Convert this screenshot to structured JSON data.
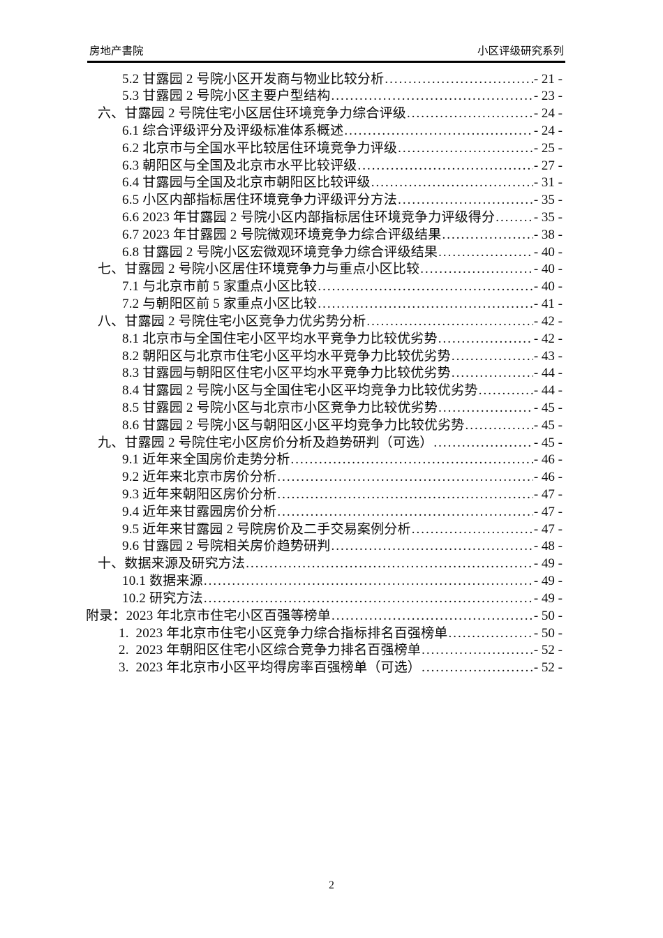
{
  "header": {
    "left": "房地产書院",
    "right": "小区评级研究系列"
  },
  "footer": {
    "page_number": "2"
  },
  "toc": {
    "entries": [
      {
        "level": "sub",
        "title": "5.2 甘露园 2 号院小区开发商与物业比较分析",
        "page": "- 21 -"
      },
      {
        "level": "sub",
        "title": "5.3 甘露园 2 号院小区主要户型结构",
        "page": "- 23 -"
      },
      {
        "level": "top",
        "title": "六、甘露园 2 号院住宅小区居住环境竞争力综合评级",
        "page": "- 24 -"
      },
      {
        "level": "sub",
        "title": "6.1 综合评级评分及评级标准体系概述",
        "page": "- 24 -"
      },
      {
        "level": "sub",
        "title": "6.2 北京市与全国水平比较居住环境竞争力评级",
        "page": "- 25 -"
      },
      {
        "level": "sub",
        "title": "6.3 朝阳区与全国及北京市水平比较评级",
        "page": "- 27 -"
      },
      {
        "level": "sub",
        "title": "6.4 甘露园与全国及北京市朝阳区比较评级",
        "page": "- 31 -"
      },
      {
        "level": "sub",
        "title": "6.5 小区内部指标居住环境竞争力评级评分方法",
        "page": "- 35 -"
      },
      {
        "level": "sub",
        "title": "6.6 2023 年甘露园 2 号院小区内部指标居住环境竞争力评级得分",
        "page": "- 35 -"
      },
      {
        "level": "sub",
        "title": "6.7 2023 年甘露园 2 号院微观环境竞争力综合评级结果",
        "page": "- 38 -"
      },
      {
        "level": "sub",
        "title": "6.8 甘露园 2 号院小区宏微观环境竞争力综合评级结果",
        "page": "- 40 -"
      },
      {
        "level": "top",
        "title": "七、甘露园 2 号院小区居住环境竞争力与重点小区比较",
        "page": "- 40 -"
      },
      {
        "level": "sub",
        "title": "7.1 与北京市前 5 家重点小区比较",
        "page": "- 40 -"
      },
      {
        "level": "sub",
        "title": "7.2 与朝阳区前 5 家重点小区比较",
        "page": "- 41 -"
      },
      {
        "level": "top",
        "title": "八、甘露园 2 号院住宅小区竞争力优劣势分析",
        "page": "- 42 -"
      },
      {
        "level": "sub",
        "title": "8.1 北京市与全国住宅小区平均水平竞争力比较优劣势",
        "page": "- 42 -"
      },
      {
        "level": "sub",
        "title": "8.2 朝阳区与北京市住宅小区平均水平竞争力比较优劣势",
        "page": "- 43 -"
      },
      {
        "level": "sub",
        "title": "8.3 甘露园与朝阳区住宅小区平均水平竞争力比较优劣势",
        "page": "- 44 -"
      },
      {
        "level": "sub",
        "title": "8.4 甘露园 2 号院小区与全国住宅小区平均竞争力比较优劣势",
        "page": "- 44 -"
      },
      {
        "level": "sub",
        "title": "8.5 甘露园 2 号院小区与北京市小区竞争力比较优劣势",
        "page": "- 45 -"
      },
      {
        "level": "sub",
        "title": "8.6 甘露园 2 号院小区与朝阳区小区平均竞争力比较优劣势",
        "page": "- 45 -"
      },
      {
        "level": "top",
        "title": "九、甘露园 2 号院住宅小区房价分析及趋势研判（可选）",
        "page": "- 45 -"
      },
      {
        "level": "sub",
        "title": "9.1 近年来全国房价走势分析",
        "page": "- 46 -"
      },
      {
        "level": "sub",
        "title": "9.2 近年来北京市房价分析",
        "page": "- 46 -"
      },
      {
        "level": "sub",
        "title": "9.3 近年来朝阳区房价分析",
        "page": "- 47 -"
      },
      {
        "level": "sub",
        "title": "9.4 近年来甘露园房价分析",
        "page": "- 47 -"
      },
      {
        "level": "sub",
        "title": "9.5 近年来甘露园 2 号院房价及二手交易案例分析",
        "page": "- 47 -"
      },
      {
        "level": "sub",
        "title": "9.6 甘露园 2 号院相关房价趋势研判",
        "page": "- 48 -"
      },
      {
        "level": "top",
        "title": "十、数据来源及研究方法",
        "page": "- 49 -"
      },
      {
        "level": "sub",
        "title": "10.1 数据来源",
        "page": "- 49 -"
      },
      {
        "level": "sub",
        "title": "10.2 研究方法",
        "page": "- 49 -"
      },
      {
        "level": "appendix",
        "title": "附录：2023 年北京市住宅小区百强等榜单",
        "page": "- 50 -"
      },
      {
        "level": "appendix-sub",
        "title": "1.  2023 年北京市住宅小区竞争力综合指标排名百强榜单",
        "page": "- 50 -"
      },
      {
        "level": "appendix-sub",
        "title": "2.  2023 年朝阳区住宅小区综合竞争力排名百强榜单",
        "page": "- 52 -"
      },
      {
        "level": "appendix-sub",
        "title": "3.  2023 年北京市小区平均得房率百强榜单（可选）",
        "page": "- 52 -"
      }
    ]
  }
}
